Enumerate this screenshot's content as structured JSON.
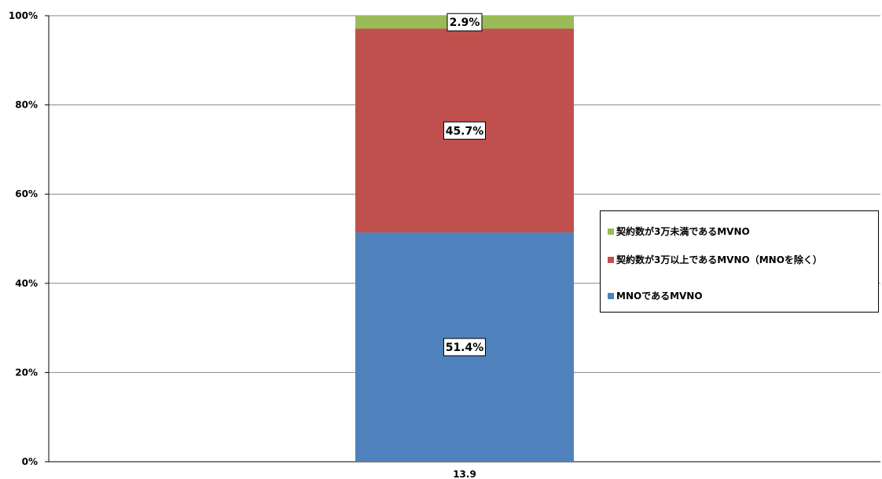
{
  "chart_data": {
    "type": "bar",
    "stacked": true,
    "categories": [
      "13.9"
    ],
    "ylim": [
      0,
      100
    ],
    "y_ticks": [
      "0%",
      "20%",
      "40%",
      "60%",
      "80%",
      "100%"
    ],
    "grid": true,
    "legend_position": "right",
    "series": [
      {
        "name": "MNOであるMVNO",
        "values": [
          51.4
        ],
        "label": "51.4%",
        "color": "#4f81bd"
      },
      {
        "name": "契約数が3万以上であるMVNO（MNOを除く）",
        "values": [
          45.7
        ],
        "label": "45.7%",
        "color": "#c0504d"
      },
      {
        "name": "契約数が3万未満であるMVNO",
        "values": [
          2.9
        ],
        "label": "2.9%",
        "color": "#9bbb59"
      }
    ],
    "legend_order": [
      2,
      1,
      0
    ]
  }
}
